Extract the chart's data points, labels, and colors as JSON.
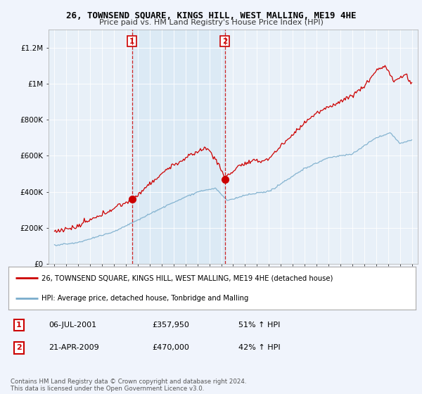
{
  "title": "26, TOWNSEND SQUARE, KINGS HILL, WEST MALLING, ME19 4HE",
  "subtitle": "Price paid vs. HM Land Registry's House Price Index (HPI)",
  "ylabel_ticks": [
    "£0",
    "£200K",
    "£400K",
    "£600K",
    "£800K",
    "£1M",
    "£1.2M"
  ],
  "ytick_vals": [
    0,
    200000,
    400000,
    600000,
    800000,
    1000000,
    1200000
  ],
  "ylim": [
    0,
    1300000
  ],
  "xlim_start": 1994.5,
  "xlim_end": 2025.5,
  "red_color": "#cc0000",
  "blue_color": "#7aadcc",
  "shade_color": "#ddeeff",
  "sale1_x": 2001.51,
  "sale1_y": 357950,
  "sale1_label": "1",
  "sale2_x": 2009.3,
  "sale2_y": 470000,
  "sale2_label": "2",
  "legend_line1": "26, TOWNSEND SQUARE, KINGS HILL, WEST MALLING, ME19 4HE (detached house)",
  "legend_line2": "HPI: Average price, detached house, Tonbridge and Malling",
  "table_row1": [
    "1",
    "06-JUL-2001",
    "£357,950",
    "51% ↑ HPI"
  ],
  "table_row2": [
    "2",
    "21-APR-2009",
    "£470,000",
    "42% ↑ HPI"
  ],
  "footer": "Contains HM Land Registry data © Crown copyright and database right 2024.\nThis data is licensed under the Open Government Licence v3.0.",
  "background_color": "#f0f4fc",
  "plot_bg_color": "#e8f0f8"
}
